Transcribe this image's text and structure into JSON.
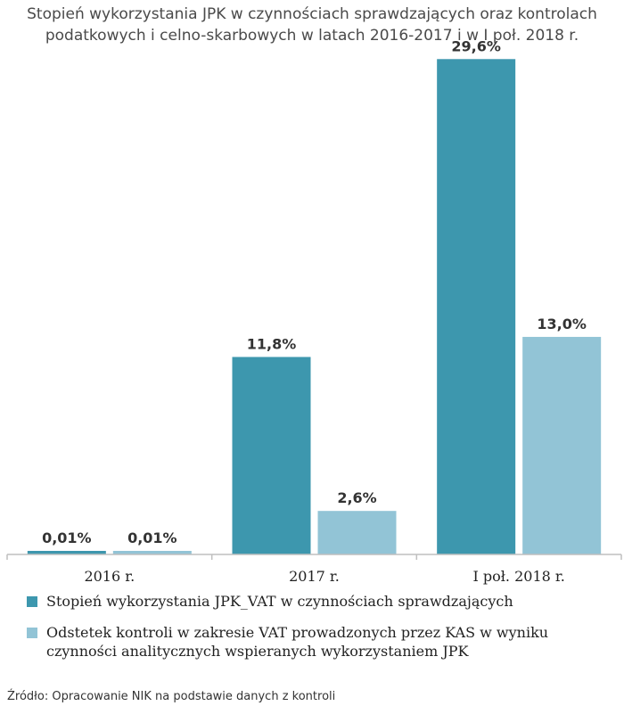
{
  "title_lines": [
    "Stopień wykorzystania JPK w czynnościach sprawdzających oraz kontrolach",
    "podatkowych i celno-skarbowych w latach 2016-2017 i w I poł. 2018 r."
  ],
  "chart_data": {
    "type": "bar",
    "title": "Stopień wykorzystania JPK w czynnościach sprawdzających oraz kontrolach podatkowych i celno-skarbowych w latach 2016-2017 i w I poł. 2018 r.",
    "categories": [
      "2016 r.",
      "2017 r.",
      "I poł. 2018 r."
    ],
    "series": [
      {
        "name": "Stopień wykorzystania JPK_VAT w czynnościach sprawdzających",
        "values": [
          0.01,
          11.8,
          29.6
        ],
        "labels": [
          "0,01%",
          "11,8%",
          "29,6%"
        ],
        "color": "#3d97ae"
      },
      {
        "name": "Odstetek kontroli  w zakresie VAT prowadzonych przez KAS  w wyniku czynności analitycznych wspieranych wykorzystaniem JPK",
        "values": [
          0.01,
          2.6,
          13.0
        ],
        "labels": [
          "0,01%",
          "2,6%",
          "13,0%"
        ],
        "color": "#92c4d6"
      }
    ],
    "ylim": [
      0,
      31
    ],
    "grid": false,
    "legend": "bottom"
  },
  "legend_lines": [
    [
      "Stopień wykorzystania JPK_VAT w czynnościach sprawdzających"
    ],
    [
      "Odstetek kontroli  w zakresie VAT prowadzonych przez KAS  w wyniku",
      "czynności analitycznych wspieranych wykorzystaniem JPK"
    ]
  ],
  "source": "Źródło: Opracowanie NIK na podstawie danych z kontroli"
}
